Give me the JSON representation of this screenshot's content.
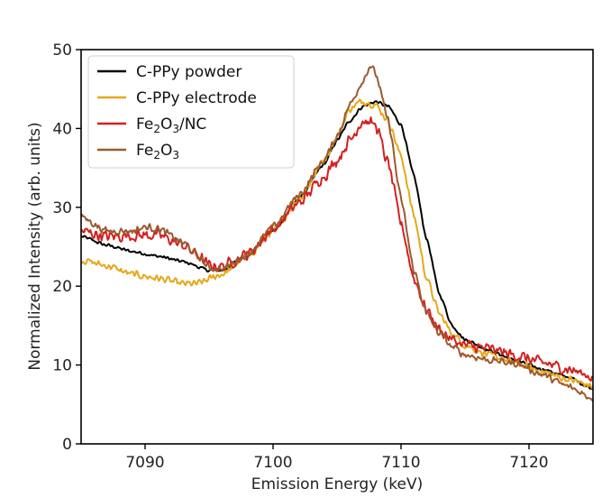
{
  "chart_data": {
    "type": "line",
    "title": "",
    "xlabel": "Emission Energy (keV)",
    "ylabel": "Normalized Intensity (arb. units)",
    "xlim": [
      7085,
      7125
    ],
    "ylim": [
      0,
      50
    ],
    "xticks": [
      7090,
      7100,
      7110,
      7120
    ],
    "yticks": [
      0,
      10,
      20,
      30,
      40,
      50
    ],
    "grid": false,
    "legend_position": "top-left",
    "series": [
      {
        "name": "C-PPy powder",
        "color": "#000000",
        "noise": 0.25,
        "points": [
          [
            7085,
            26.3
          ],
          [
            7087,
            25.2
          ],
          [
            7089,
            24.4
          ],
          [
            7091,
            23.8
          ],
          [
            7093,
            23.1
          ],
          [
            7095,
            22.0
          ],
          [
            7096,
            22.0
          ],
          [
            7098,
            24.0
          ],
          [
            7100,
            27.0
          ],
          [
            7102,
            31.0
          ],
          [
            7104,
            35.5
          ],
          [
            7105,
            38.5
          ],
          [
            7106,
            41.0
          ],
          [
            7107,
            42.8
          ],
          [
            7108,
            43.4
          ],
          [
            7109,
            42.8
          ],
          [
            7110,
            40.5
          ],
          [
            7111,
            34.0
          ],
          [
            7112,
            26.0
          ],
          [
            7113,
            19.0
          ],
          [
            7114,
            15.0
          ],
          [
            7115,
            13.2
          ],
          [
            7117,
            11.8
          ],
          [
            7119,
            10.5
          ],
          [
            7121,
            9.5
          ],
          [
            7123,
            8.5
          ],
          [
            7125,
            7.0
          ]
        ]
      },
      {
        "name": "C-PPy electrode",
        "color": "#E6A817",
        "noise": 0.55,
        "points": [
          [
            7085,
            23.3
          ],
          [
            7087,
            22.6
          ],
          [
            7089,
            21.5
          ],
          [
            7091,
            21.0
          ],
          [
            7093,
            20.3
          ],
          [
            7094,
            20.3
          ],
          [
            7096,
            21.5
          ],
          [
            7098,
            23.8
          ],
          [
            7100,
            27.0
          ],
          [
            7102,
            31.0
          ],
          [
            7104,
            36.0
          ],
          [
            7105,
            39.0
          ],
          [
            7106,
            42.5
          ],
          [
            7107,
            43.5
          ],
          [
            7108,
            43.0
          ],
          [
            7109,
            41.0
          ],
          [
            7110,
            36.5
          ],
          [
            7111,
            29.0
          ],
          [
            7112,
            21.0
          ],
          [
            7113,
            16.5
          ],
          [
            7114,
            14.0
          ],
          [
            7115,
            12.5
          ],
          [
            7117,
            11.2
          ],
          [
            7119,
            10.2
          ],
          [
            7121,
            9.2
          ],
          [
            7123,
            8.2
          ],
          [
            7125,
            7.3
          ]
        ]
      },
      {
        "name": "Fe2O3/NC",
        "color": "#D42020",
        "noise": 0.9,
        "points": [
          [
            7085,
            27.0
          ],
          [
            7087,
            26.3
          ],
          [
            7089,
            26.4
          ],
          [
            7091,
            26.5
          ],
          [
            7093,
            25.2
          ],
          [
            7094,
            24.0
          ],
          [
            7095,
            22.6
          ],
          [
            7096,
            22.5
          ],
          [
            7098,
            24.0
          ],
          [
            7100,
            27.2
          ],
          [
            7102,
            30.5
          ],
          [
            7104,
            34.0
          ],
          [
            7105,
            36.0
          ],
          [
            7106,
            38.5
          ],
          [
            7107,
            41.0
          ],
          [
            7108,
            40.5
          ],
          [
            7109,
            35.5
          ],
          [
            7110,
            28.0
          ],
          [
            7111,
            21.0
          ],
          [
            7112,
            17.0
          ],
          [
            7113,
            14.5
          ],
          [
            7114,
            13.2
          ],
          [
            7115,
            12.5
          ],
          [
            7117,
            12.0
          ],
          [
            7119,
            11.2
          ],
          [
            7121,
            10.3
          ],
          [
            7123,
            9.5
          ],
          [
            7125,
            8.5
          ]
        ]
      },
      {
        "name": "Fe2O3",
        "color": "#9C5A2F",
        "noise": 0.55,
        "points": [
          [
            7085,
            28.8
          ],
          [
            7087,
            27.0
          ],
          [
            7089,
            27.0
          ],
          [
            7090,
            27.5
          ],
          [
            7091,
            27.3
          ],
          [
            7093,
            25.5
          ],
          [
            7094,
            24.0
          ],
          [
            7095,
            22.3
          ],
          [
            7096,
            22.2
          ],
          [
            7098,
            24.0
          ],
          [
            7100,
            27.5
          ],
          [
            7102,
            31.5
          ],
          [
            7104,
            36.0
          ],
          [
            7105,
            39.0
          ],
          [
            7106,
            43.0
          ],
          [
            7107,
            46.0
          ],
          [
            7107.6,
            48.0
          ],
          [
            7108,
            47.0
          ],
          [
            7109,
            41.0
          ],
          [
            7110,
            31.0
          ],
          [
            7111,
            22.0
          ],
          [
            7112,
            16.5
          ],
          [
            7113,
            14.0
          ],
          [
            7114,
            12.3
          ],
          [
            7115,
            11.3
          ],
          [
            7117,
            10.6
          ],
          [
            7119,
            10.2
          ],
          [
            7121,
            8.8
          ],
          [
            7123,
            7.3
          ],
          [
            7125,
            5.8
          ]
        ]
      }
    ],
    "legend_labels": [
      {
        "prefix": "C-PPy powder",
        "sub": "",
        "mid": "",
        "sub2": "",
        "suffix": ""
      },
      {
        "prefix": "C-PPy electrode",
        "sub": "",
        "mid": "",
        "sub2": "",
        "suffix": ""
      },
      {
        "prefix": "Fe",
        "sub": "2",
        "mid": "O",
        "sub2": "3",
        "suffix": "/NC"
      },
      {
        "prefix": "Fe",
        "sub": "2",
        "mid": "O",
        "sub2": "3",
        "suffix": ""
      }
    ]
  }
}
